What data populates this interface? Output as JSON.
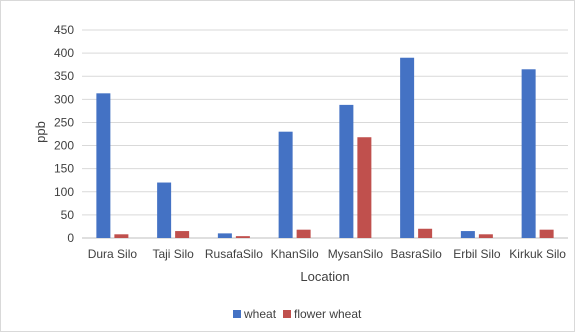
{
  "chart_data": {
    "type": "bar",
    "categories": [
      "Dura Silo",
      "Taji Silo",
      "RusafaSilo",
      "KhanSilo",
      "MysanSilo",
      "BasraSilo",
      "Erbil Silo",
      "Kirkuk Silo"
    ],
    "series": [
      {
        "name": "wheat",
        "color": "#4472c4",
        "values": [
          313,
          120,
          10,
          230,
          288,
          390,
          15,
          365
        ]
      },
      {
        "name": "flower wheat",
        "color": "#c0504d",
        "values": [
          8,
          15,
          4,
          18,
          218,
          20,
          8,
          18
        ]
      }
    ],
    "title": "",
    "xlabel": "Location",
    "ylabel": "ppb",
    "ylim": [
      0,
      450
    ],
    "yticks": [
      0,
      50,
      100,
      150,
      200,
      250,
      300,
      350,
      400,
      450
    ],
    "grid": true,
    "legend_position": "bottom"
  }
}
